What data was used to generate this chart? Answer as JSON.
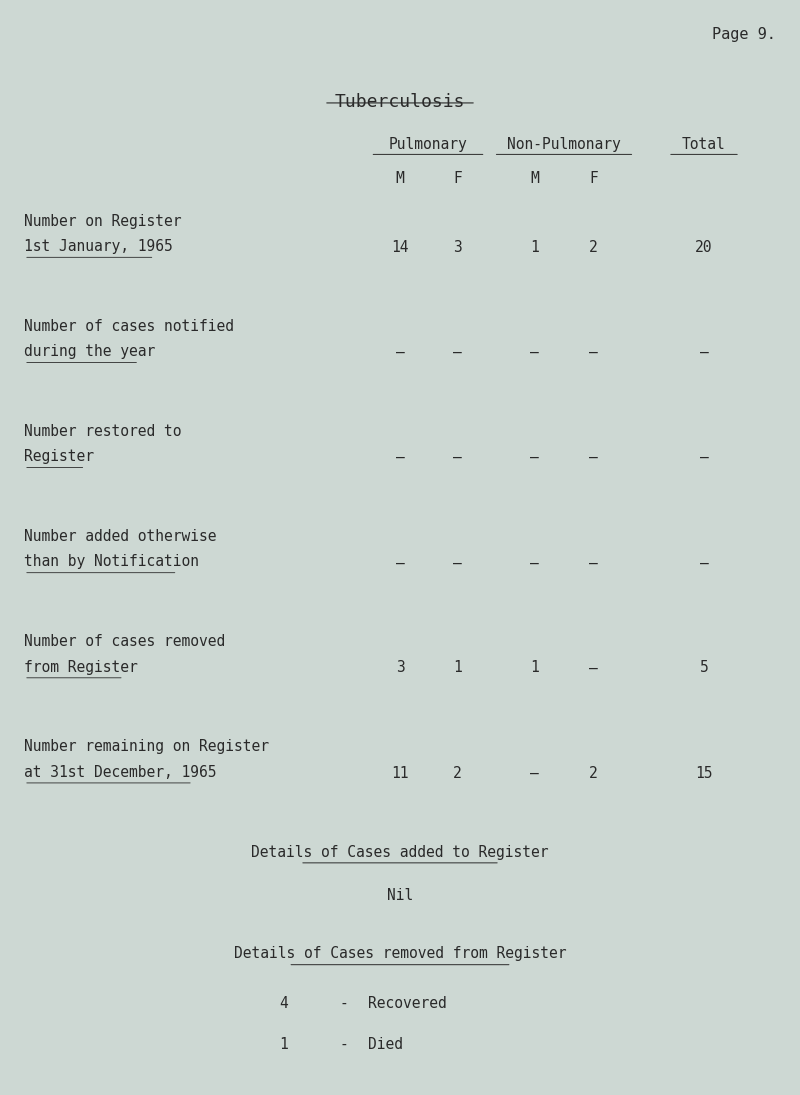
{
  "page_label": "Page 9.",
  "title": "Tuberculosis",
  "background_color": "#cdd8d3",
  "text_color": "#2a2a2a",
  "header_pulmonary": "Pulmonary",
  "header_non_pulmonary": "Non-Pulmonary",
  "header_total": "Total",
  "rows": [
    {
      "label_line1": "Number on Register",
      "label_line2": "1st January, 1965",
      "pul_m": "14",
      "pul_f": "3",
      "nonpul_m": "1",
      "nonpul_f": "2",
      "total": "20"
    },
    {
      "label_line1": "Number of cases notified",
      "label_line2": "during the year",
      "pul_m": "–",
      "pul_f": "–",
      "nonpul_m": "–",
      "nonpul_f": "–",
      "total": "–"
    },
    {
      "label_line1": "Number restored to",
      "label_line2": "Register",
      "pul_m": "–",
      "pul_f": "–",
      "nonpul_m": "–",
      "nonpul_f": "–",
      "total": "–"
    },
    {
      "label_line1": "Number added otherwise",
      "label_line2": "than by Notification",
      "pul_m": "–",
      "pul_f": "–",
      "nonpul_m": "–",
      "nonpul_f": "–",
      "total": "–"
    },
    {
      "label_line1": "Number of cases removed",
      "label_line2": "from Register",
      "pul_m": "3",
      "pul_f": "1",
      "nonpul_m": "1",
      "nonpul_f": "–",
      "total": "5"
    },
    {
      "label_line1": "Number remaining on Register",
      "label_line2": "at 31st December, 1965",
      "pul_m": "11",
      "pul_f": "2",
      "nonpul_m": "–",
      "nonpul_f": "2",
      "total": "15"
    }
  ],
  "details_added_title": "Details of Cases added to Register",
  "details_added_value": "Nil",
  "details_removed_title": "Details of Cases removed from Register",
  "details_removed_rows": [
    {
      "number": "4",
      "description": "Recovered"
    },
    {
      "number": "1",
      "description": "Died"
    }
  ],
  "font_family": "monospace",
  "font_size_body": 10.5,
  "font_size_title": 13,
  "font_size_page": 11
}
